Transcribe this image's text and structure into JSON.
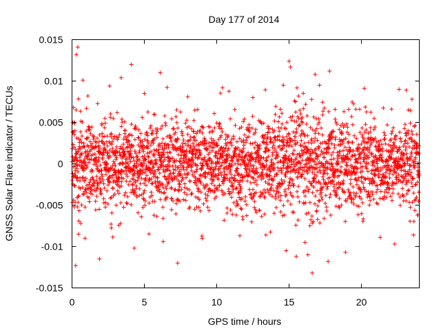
{
  "chart_data": {
    "type": "scatter",
    "title": "Day 177 of 2014",
    "xlabel": "GPS time / hours",
    "ylabel": "GNSS Solar Flare indicator / TECUs",
    "xlim": [
      0,
      24
    ],
    "ylim": [
      -0.015,
      0.015
    ],
    "x_ticks": [
      0,
      5,
      10,
      15,
      20
    ],
    "x_tick_labels": [
      "0",
      "5",
      "10",
      "15",
      "20"
    ],
    "y_ticks": [
      -0.015,
      -0.01,
      -0.005,
      0,
      0.005,
      0.01,
      0.015
    ],
    "y_tick_labels": [
      "-0.015",
      "-0.01",
      "-0.005",
      "0",
      "0.005",
      "0.01",
      "0.015"
    ],
    "grid": false,
    "legend": "none",
    "marker": "+",
    "marker_color": "#ff0000",
    "point_count_estimate": 2880,
    "noise_profile": [
      {
        "hours": [
          0,
          14
        ],
        "std": 0.0035
      },
      {
        "hours": [
          14,
          18
        ],
        "std": 0.0045
      },
      {
        "hours": [
          18,
          24
        ],
        "std": 0.0035
      }
    ],
    "series": [
      {
        "name": "indicator",
        "points": [
          [
            0.05,
            0.0038
          ],
          [
            0.1,
            0.0068
          ],
          [
            0.15,
            -0.0052
          ],
          [
            0.2,
            0.004
          ],
          [
            0.25,
            -0.0123
          ],
          [
            0.3,
            0.0132
          ],
          [
            0.4,
            0.0141
          ],
          [
            0.45,
            -0.0085
          ],
          [
            0.6,
            -0.0072
          ],
          [
            0.75,
            0.0101
          ],
          [
            0.9,
            -0.009
          ],
          [
            1.1,
            0.0082
          ],
          [
            1.9,
            -0.0115
          ],
          [
            2.6,
            0.0094
          ],
          [
            3.4,
            0.0104
          ],
          [
            4.1,
            0.012
          ],
          [
            4.3,
            -0.0102
          ],
          [
            5.0,
            0.0085
          ],
          [
            6.1,
            0.011
          ],
          [
            6.3,
            -0.0094
          ],
          [
            7.3,
            -0.012
          ],
          [
            8.0,
            0.0081
          ],
          [
            9.0,
            -0.009
          ],
          [
            10.4,
            0.0092
          ],
          [
            11.6,
            -0.0087
          ],
          [
            12.5,
            0.008
          ],
          [
            13.4,
            -0.0086
          ],
          [
            14.6,
            0.0095
          ],
          [
            15.0,
            0.0124
          ],
          [
            15.1,
            0.0117
          ],
          [
            14.8,
            -0.0105
          ],
          [
            15.5,
            -0.0112
          ],
          [
            16.3,
            -0.011
          ],
          [
            16.6,
            -0.0132
          ],
          [
            16.8,
            0.0108
          ],
          [
            17.8,
            0.0112
          ],
          [
            17.7,
            -0.0118
          ],
          [
            18.9,
            -0.0107
          ],
          [
            20.2,
            0.0091
          ],
          [
            21.3,
            -0.0089
          ],
          [
            22.3,
            -0.0097
          ],
          [
            22.6,
            0.009
          ],
          [
            23.1,
            0.0089
          ],
          [
            23.6,
            -0.0086
          ],
          [
            23.9,
            -0.0062
          ]
        ]
      }
    ]
  }
}
